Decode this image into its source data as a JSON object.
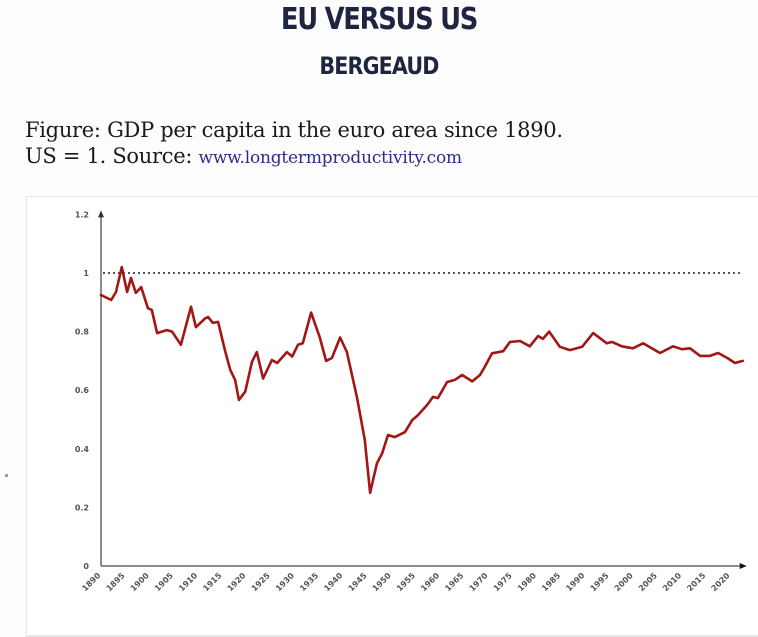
{
  "header": {
    "title": "EU VERSUS US",
    "subtitle": "BERGEAUD"
  },
  "caption": {
    "line1": "Figure: GDP per capita in the euro area since 1890.",
    "line2_prefix": "US = 1. Source: ",
    "source_link": "www.longtermproductivity.com"
  },
  "colors": {
    "title": "#1f2440",
    "series": "#a31616",
    "link": "#2a2d8c",
    "reference_line": "#555555"
  },
  "chart_data": {
    "type": "line",
    "title": "GDP per capita in the euro area since 1890 (US = 1)",
    "xlabel": "",
    "ylabel": "",
    "xlim": [
      1890,
      2023
    ],
    "ylim": [
      0,
      1.2
    ],
    "grid": false,
    "legend": "none",
    "y_ticks": [
      "0",
      "0.2",
      "0.4",
      "0.6",
      "0.8",
      "1",
      "1.2"
    ],
    "y_tick_values": [
      0,
      0.2,
      0.4,
      0.6,
      0.8,
      1,
      1.2
    ],
    "x_ticks": [
      "1890",
      "1895",
      "1900",
      "1905",
      "1910",
      "1915",
      "1920",
      "1925",
      "1930",
      "1935",
      "1940",
      "1945",
      "1950",
      "1955",
      "1960",
      "1965",
      "1970",
      "1975",
      "1980",
      "1985",
      "1990",
      "1995",
      "2000",
      "2005",
      "2010",
      "2015",
      "2020"
    ],
    "x_tick_values": [
      1890,
      1895,
      1900,
      1905,
      1910,
      1915,
      1920,
      1925,
      1930,
      1935,
      1940,
      1945,
      1950,
      1955,
      1960,
      1965,
      1970,
      1975,
      1980,
      1985,
      1990,
      1995,
      2000,
      2005,
      2010,
      2015,
      2020
    ],
    "reference_line": {
      "y": 1,
      "style": "dotted"
    },
    "series": [
      {
        "name": "Euro area GDP per capita (US = 1)",
        "x": [
          1890,
          1892.1,
          1893.1,
          1894.3,
          1895.4,
          1896.2,
          1897.2,
          1898.3,
          1899.7,
          1900.5,
          1901.6,
          1903.6,
          1904.7,
          1906.5,
          1908.6,
          1909.6,
          1911.5,
          1912.1,
          1913.1,
          1914.2,
          1915.6,
          1916.7,
          1917.7,
          1918.5,
          1919.8,
          1921.2,
          1922.2,
          1923.5,
          1925.3,
          1926.4,
          1928.4,
          1929.5,
          1930.7,
          1931.7,
          1933.4,
          1935.2,
          1936.5,
          1937.7,
          1939.4,
          1940.8,
          1942.9,
          1944.5,
          1945.6,
          1947,
          1948.1,
          1949.3,
          1950.7,
          1952.8,
          1954.3,
          1955.5,
          1957.4,
          1958.6,
          1959.6,
          1961.5,
          1963.1,
          1964.6,
          1966.7,
          1968.3,
          1969.3,
          1970.8,
          1973.1,
          1974.5,
          1976.6,
          1978.6,
          1980.3,
          1981.3,
          1982.6,
          1984.8,
          1986.9,
          1989.4,
          1991.7,
          1994.5,
          1995.6,
          1997.6,
          1999.9,
          2002,
          2005.5,
          2008.2,
          2010,
          2011.7,
          2013.8,
          2015.8,
          2017.5,
          2019.4,
          2021,
          2022.6
        ],
        "y": [
          0.925,
          0.908,
          0.935,
          1.02,
          0.935,
          0.983,
          0.932,
          0.952,
          0.88,
          0.874,
          0.795,
          0.805,
          0.8,
          0.755,
          0.885,
          0.815,
          0.845,
          0.85,
          0.83,
          0.833,
          0.737,
          0.67,
          0.635,
          0.567,
          0.595,
          0.697,
          0.73,
          0.64,
          0.703,
          0.693,
          0.73,
          0.715,
          0.755,
          0.76,
          0.865,
          0.78,
          0.7,
          0.71,
          0.78,
          0.73,
          0.575,
          0.43,
          0.25,
          0.35,
          0.385,
          0.447,
          0.44,
          0.457,
          0.498,
          0.515,
          0.55,
          0.577,
          0.573,
          0.628,
          0.635,
          0.652,
          0.63,
          0.652,
          0.68,
          0.726,
          0.733,
          0.765,
          0.768,
          0.75,
          0.785,
          0.775,
          0.8,
          0.748,
          0.737,
          0.748,
          0.795,
          0.76,
          0.765,
          0.75,
          0.743,
          0.76,
          0.727,
          0.75,
          0.74,
          0.743,
          0.717,
          0.717,
          0.727,
          0.71,
          0.693,
          0.7
        ]
      }
    ]
  }
}
